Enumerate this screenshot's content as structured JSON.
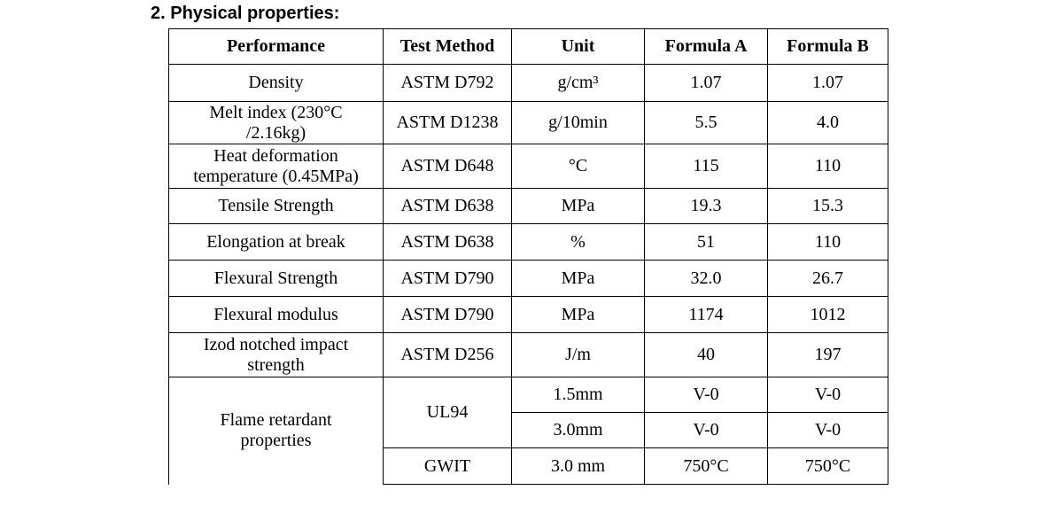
{
  "heading": "2. Physical properties:",
  "table": {
    "header": [
      "Performance",
      "Test Method",
      "Unit",
      "Formula A",
      "Formula B"
    ],
    "rows": [
      [
        "Density",
        "ASTM D792",
        "g/cm³",
        "1.07",
        "1.07"
      ],
      [
        "Melt index (230°C\n/2.16kg)",
        "ASTM D1238",
        "g/10min",
        "5.5",
        "4.0"
      ],
      [
        "Heat deformation\ntemperature (0.45MPa)",
        "ASTM D648",
        "°C",
        "115",
        "110"
      ],
      [
        "Tensile Strength",
        "ASTM D638",
        "MPa",
        "19.3",
        "15.3"
      ],
      [
        "Elongation at break",
        "ASTM D638",
        "%",
        "51",
        "110"
      ],
      [
        "Flexural Strength",
        "ASTM D790",
        "MPa",
        "32.0",
        "26.7"
      ],
      [
        "Flexural modulus",
        "ASTM D790",
        "MPa",
        "1174",
        "1012"
      ],
      [
        "Izod notched impact\nstrength",
        "ASTM D256",
        "J/m",
        "40",
        "197"
      ]
    ],
    "flame": {
      "label": "Flame retardant\nproperties",
      "groups": [
        {
          "method": "UL94",
          "rows": [
            [
              "1.5mm",
              "V-0",
              "V-0"
            ],
            [
              "3.0mm",
              "V-0",
              "V-0"
            ]
          ]
        },
        {
          "method": "GWIT",
          "rows": [
            [
              "3.0 mm",
              "750°C",
              "750°C"
            ]
          ]
        }
      ]
    }
  }
}
